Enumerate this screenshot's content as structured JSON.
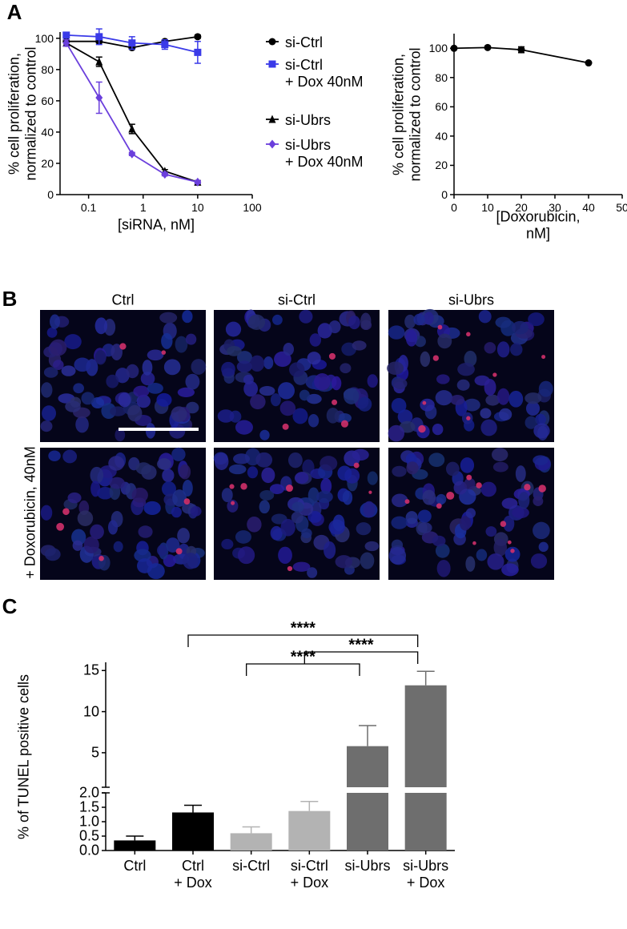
{
  "panel_labels": [
    "A",
    "B",
    "C"
  ],
  "chart_data": [
    {
      "type": "line",
      "xscale": "log",
      "xlabel": "[siRNA, nM]",
      "ylabel": "% cell proliferation,\nnormalized to control",
      "x": [
        0.039,
        0.156,
        0.625,
        2.5,
        10
      ],
      "xlim": [
        0.03,
        100
      ],
      "xticks": [
        0.1,
        1,
        10,
        100
      ],
      "ylim": [
        0,
        104
      ],
      "yticks": [
        0,
        20,
        40,
        60,
        80,
        100
      ],
      "series": [
        {
          "name": "si-Ctrl",
          "color": "#000000",
          "marker": "circle",
          "values": [
            98,
            98,
            94,
            98,
            101
          ],
          "errors": [
            1,
            1,
            1,
            1,
            1
          ]
        },
        {
          "name": "si-Ctrl\n+ Dox 40nM",
          "color": "#3a3ae8",
          "marker": "square",
          "values": [
            102,
            101,
            97,
            96,
            91
          ],
          "errors": [
            1,
            5,
            4,
            3,
            7
          ]
        },
        {
          "name": "si-Ubrs",
          "color": "#000000",
          "marker": "triangle",
          "values": [
            97,
            85,
            42,
            15,
            8
          ],
          "errors": [
            2,
            3,
            3,
            1,
            1
          ]
        },
        {
          "name": "si-Ubrs\n+ Dox 40nM",
          "color": "#6b3fdc",
          "marker": "diamond",
          "values": [
            97,
            62,
            26,
            13,
            8
          ],
          "errors": [
            2,
            10,
            1,
            1,
            1
          ]
        }
      ]
    },
    {
      "type": "line",
      "xlabel": "[Doxorubicin, nM]",
      "ylabel": "% cell proliferation,\nnormalized to control",
      "x": [
        0,
        10,
        20,
        40
      ],
      "xlim": [
        0,
        50
      ],
      "xticks": [
        0,
        10,
        20,
        30,
        40,
        50
      ],
      "ylim": [
        0,
        110
      ],
      "yticks": [
        0,
        20,
        40,
        60,
        80,
        100
      ],
      "series": [
        {
          "color": "#000000",
          "marker": "circle",
          "values": [
            100,
            100.5,
            99,
            90
          ],
          "errors": [
            0,
            0,
            2,
            0
          ]
        }
      ]
    },
    {
      "type": "bar",
      "ylabel": "% of TUNEL positive cells",
      "categories": [
        "Ctrl",
        "Ctrl\n+ Dox",
        "si-Ctrl",
        "si-Ctrl\n+ Dox",
        "si-Ubrs",
        "si-Ubrs\n+ Dox"
      ],
      "values": [
        0.35,
        1.32,
        0.6,
        1.37,
        5.8,
        13.2
      ],
      "errors": [
        0.15,
        0.25,
        0.22,
        0.33,
        2.5,
        1.7
      ],
      "colors": [
        "#000000",
        "#000000",
        "#b3b3b3",
        "#b3b3b3",
        "#6e6e6e",
        "#6e6e6e"
      ],
      "ylim_lower": [
        0,
        2
      ],
      "yticks_lower": [
        {
          "value": 0,
          "label": "0.0"
        },
        {
          "value": 0.5,
          "label": "0.5"
        },
        {
          "value": 1,
          "label": "1.0"
        },
        {
          "value": 1.5,
          "label": "1.5"
        },
        {
          "value": 2,
          "label": "2.0"
        }
      ],
      "ylim_upper": [
        0.8,
        16
      ],
      "yticks_upper": [
        5,
        10,
        15
      ],
      "annotations": [
        {
          "text": "****",
          "between": [
            "Ctrl\n+ Dox",
            "si-Ubrs\n+ Dox"
          ]
        },
        {
          "text": "****",
          "between": [
            "si-Ctrl\n+ Dox",
            "si-Ubrs\n+ Dox"
          ]
        },
        {
          "text": "****",
          "between": [
            "si-Ctrl",
            "si-Ubrs"
          ]
        }
      ]
    }
  ],
  "images": {
    "columns": [
      "Ctrl",
      "si-Ctrl",
      "si-Ubrs"
    ],
    "row_label": "+ Doxorubicin, 40nM"
  }
}
